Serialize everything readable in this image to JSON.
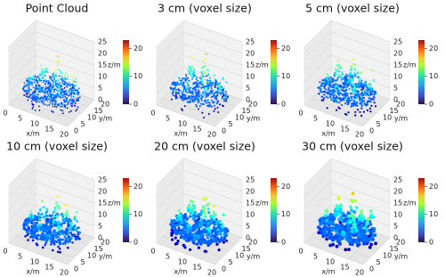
{
  "panels": [
    {
      "title": "Point Cloud"
    },
    {
      "title": "3 cm (voxel size)"
    },
    {
      "title": "5 cm (voxel size)"
    },
    {
      "title": "10 cm (voxel size)"
    },
    {
      "title": "20 cm (voxel size)"
    },
    {
      "title": "30 cm (voxel size)"
    }
  ],
  "x_label": "x/m",
  "y_label": "y/m",
  "z_label": "z/m",
  "xlim": [
    0,
    20
  ],
  "ylim": [
    0,
    20
  ],
  "zlim": [
    0,
    25
  ],
  "xticks": [
    0,
    5,
    10,
    15,
    20
  ],
  "yticks": [
    0,
    5,
    10,
    15,
    20
  ],
  "zticks": [
    0,
    5,
    10,
    15,
    20,
    25
  ],
  "colorbar_lim": [
    0,
    23
  ],
  "colorbar_ticks": [
    0,
    10,
    20
  ]
}
